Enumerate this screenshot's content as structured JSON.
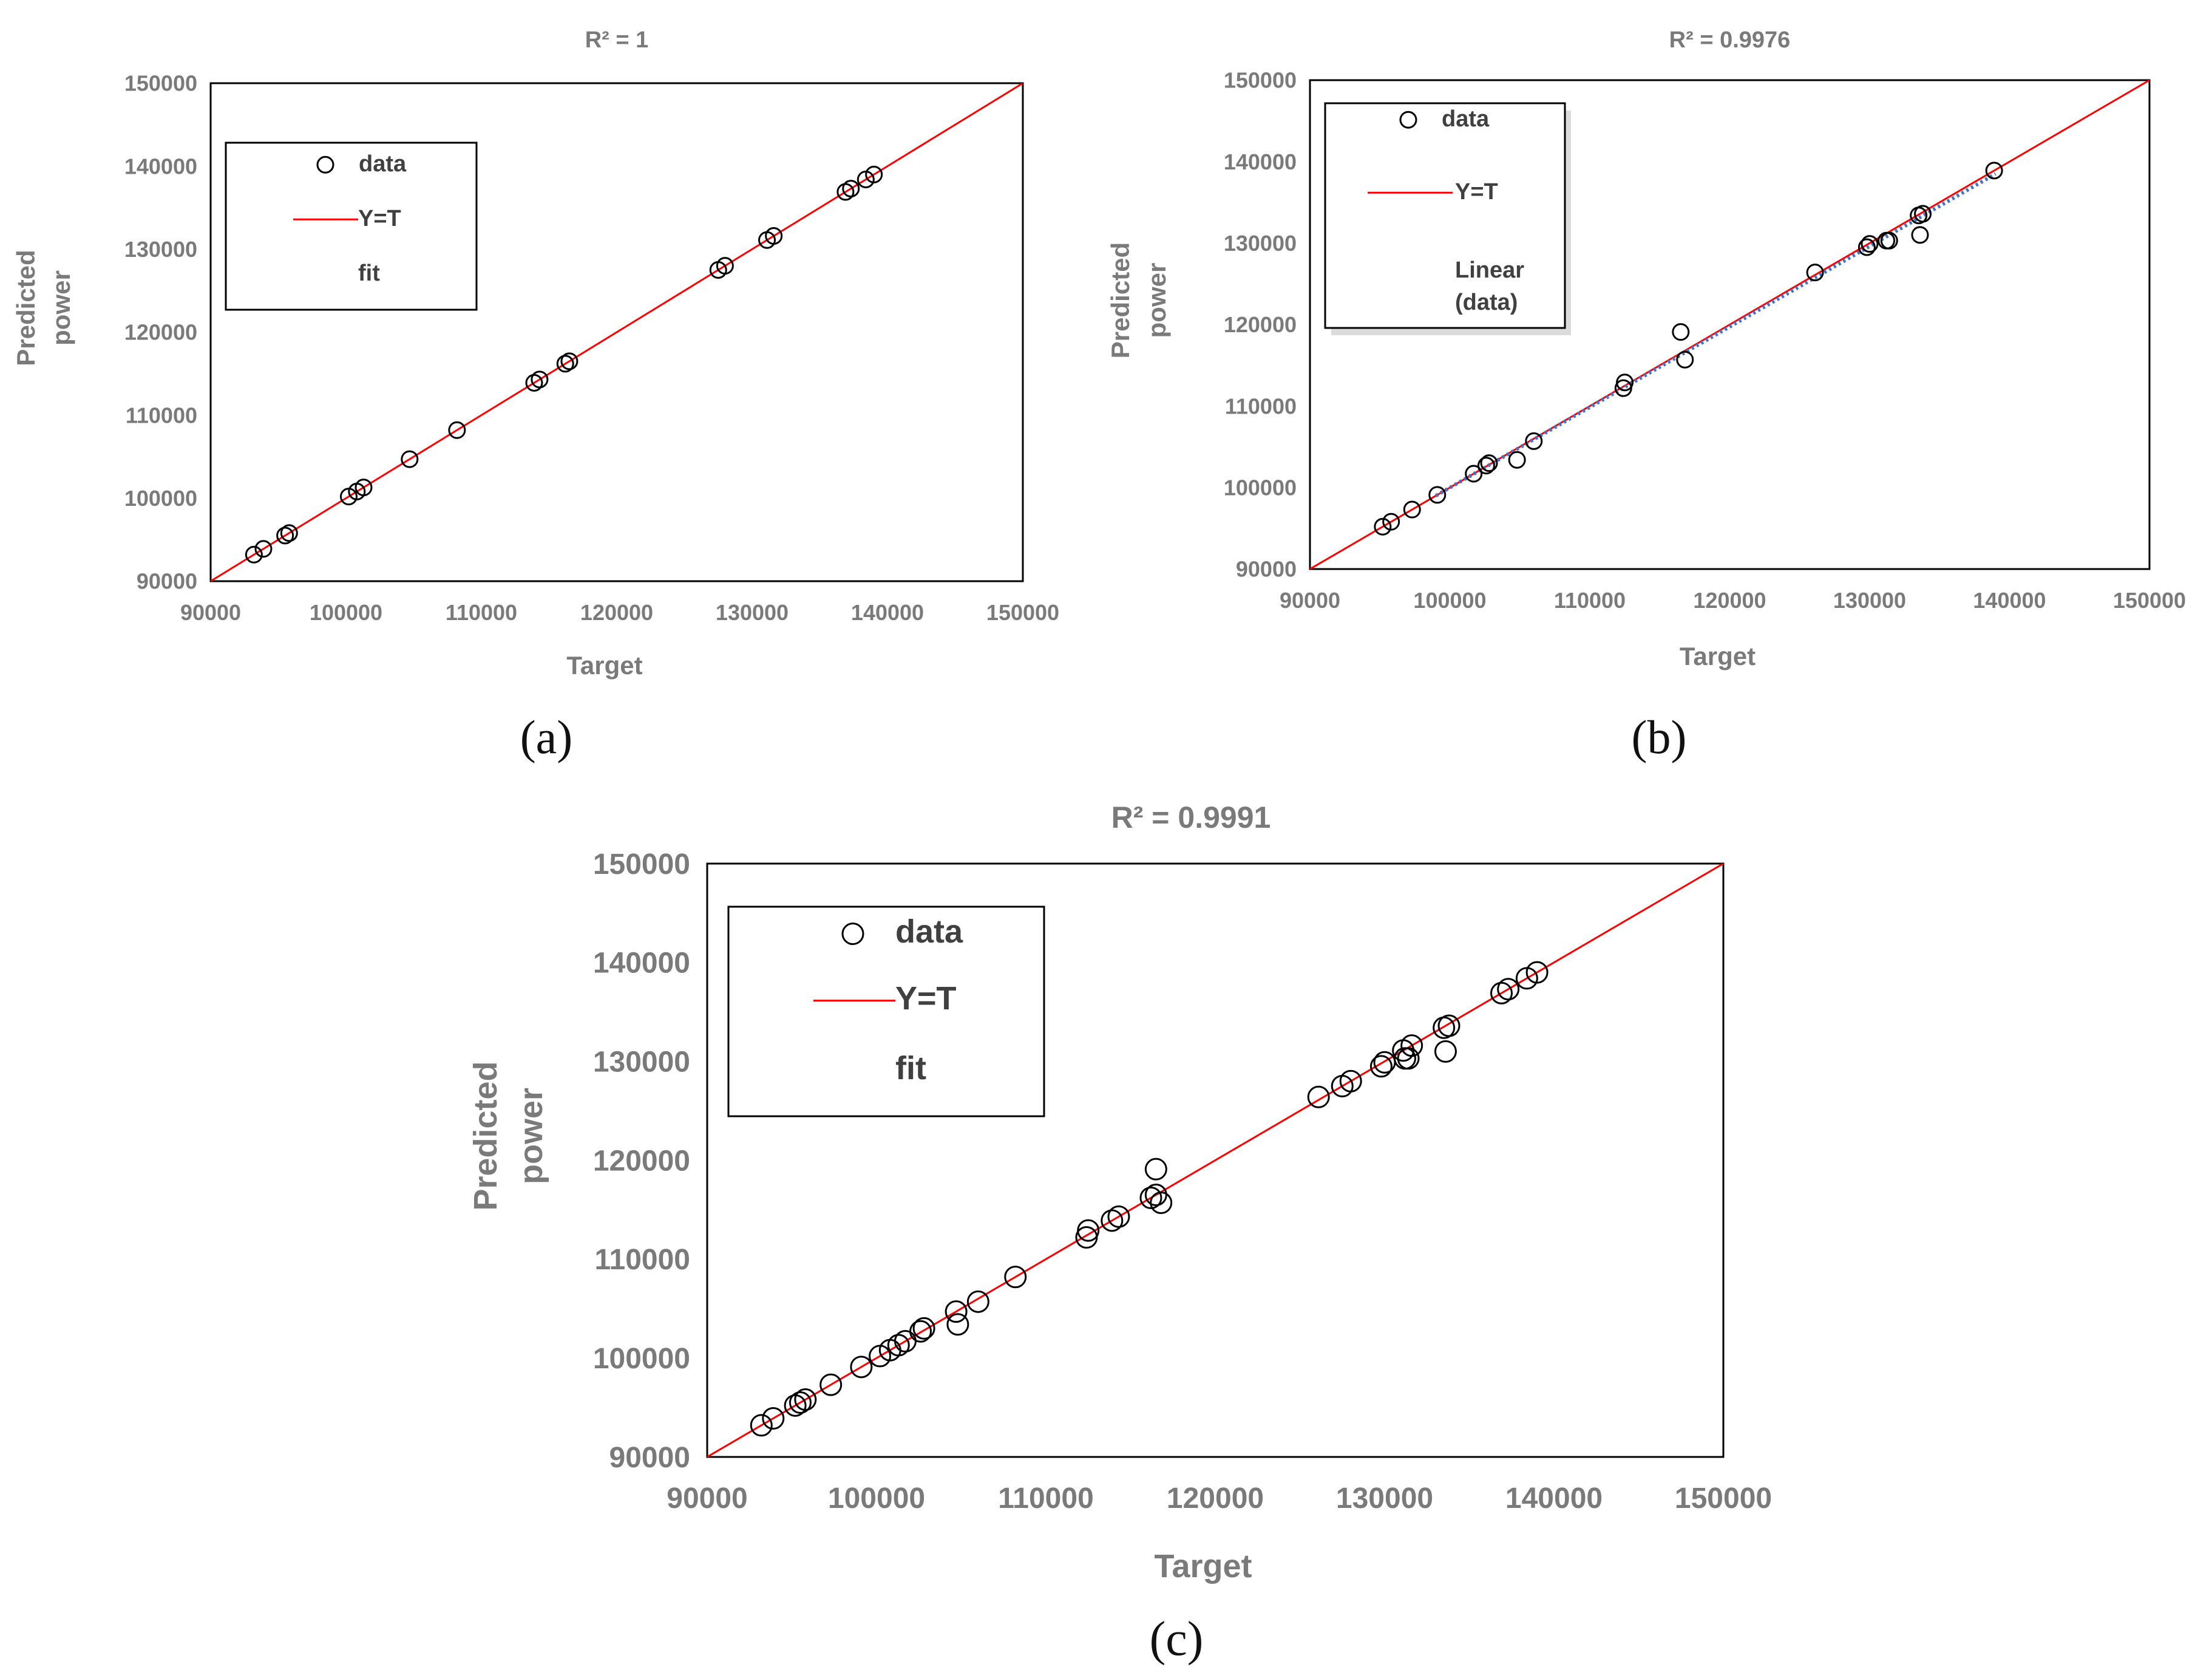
{
  "chart_data": [
    {
      "id": "a",
      "type": "scatter",
      "title": "R² = 1",
      "xlabel": "Target",
      "ylabel": [
        "Predicted",
        "power"
      ],
      "xlim": [
        90000,
        150000
      ],
      "ylim": [
        90000,
        150000
      ],
      "xticks": [
        "90000",
        "100000",
        "110000",
        "120000",
        "130000",
        "140000",
        "150000"
      ],
      "yticks": [
        "90000",
        "100000",
        "110000",
        "120000",
        "130000",
        "140000",
        "150000"
      ],
      "grid": false,
      "legend": {
        "position": "top-left",
        "entries": [
          "data",
          "Y=T",
          "fit"
        ]
      },
      "caption": "(a)",
      "series": [
        {
          "name": "data",
          "marker": "open-circle",
          "points": [
            [
              93200,
              93200
            ],
            [
              93900,
              93900
            ],
            [
              95500,
              95500
            ],
            [
              95800,
              95800
            ],
            [
              100200,
              100200
            ],
            [
              100800,
              100800
            ],
            [
              101300,
              101300
            ],
            [
              104700,
              104700
            ],
            [
              108200,
              108200
            ],
            [
              113900,
              113900
            ],
            [
              114300,
              114300
            ],
            [
              116200,
              116200
            ],
            [
              116500,
              116500
            ],
            [
              127500,
              127500
            ],
            [
              128000,
              128000
            ],
            [
              131100,
              131100
            ],
            [
              131600,
              131600
            ],
            [
              136900,
              136900
            ],
            [
              137300,
              137300
            ],
            [
              138400,
              138400
            ],
            [
              139000,
              139000
            ]
          ]
        },
        {
          "name": "Y=T",
          "type": "line",
          "color": "#ff0000",
          "points": [
            [
              90000,
              90000
            ],
            [
              150000,
              150000
            ]
          ]
        }
      ]
    },
    {
      "id": "b",
      "type": "scatter",
      "title": "R² = 0.9976",
      "xlabel": "Target",
      "ylabel": [
        "Predicted",
        "power"
      ],
      "xlim": [
        90000,
        150000
      ],
      "ylim": [
        90000,
        150000
      ],
      "xticks": [
        "90000",
        "100000",
        "110000",
        "120000",
        "130000",
        "140000",
        "150000"
      ],
      "yticks": [
        "90000",
        "100000",
        "110000",
        "120000",
        "130000",
        "140000",
        "150000"
      ],
      "grid": false,
      "legend": {
        "position": "top-left",
        "entries": [
          "data",
          "Y=T",
          "Linear",
          "(data)"
        ]
      },
      "caption": "(b)",
      "series": [
        {
          "name": "data",
          "marker": "open-circle",
          "points": [
            [
              95200,
              95200
            ],
            [
              95800,
              95800
            ],
            [
              97300,
              97300
            ],
            [
              99100,
              99100
            ],
            [
              101700,
              101700
            ],
            [
              102600,
              102700
            ],
            [
              102800,
              103000
            ],
            [
              104800,
              103400
            ],
            [
              106000,
              105700
            ],
            [
              112400,
              112200
            ],
            [
              112500,
              112900
            ],
            [
              116500,
              119100
            ],
            [
              116800,
              115700
            ],
            [
              126100,
              126400
            ],
            [
              129800,
              129500
            ],
            [
              130000,
              129900
            ],
            [
              131200,
              130300
            ],
            [
              131400,
              130300
            ],
            [
              133500,
              133400
            ],
            [
              133600,
              131000
            ],
            [
              133800,
              133600
            ],
            [
              138900,
              138900
            ]
          ]
        },
        {
          "name": "Y=T",
          "type": "line",
          "color": "#ff0000",
          "points": [
            [
              90000,
              90000
            ],
            [
              150000,
              150000
            ]
          ]
        },
        {
          "name": "Linear (data)",
          "type": "line",
          "style": "dotted",
          "color": "#4472c4",
          "points": [
            [
              99000,
              99000
            ],
            [
              139000,
              138500
            ]
          ]
        }
      ]
    },
    {
      "id": "c",
      "type": "scatter",
      "title": "R² = 0.9991",
      "xlabel": "Target",
      "ylabel": [
        "Predicted",
        "power"
      ],
      "xlim": [
        90000,
        150000
      ],
      "ylim": [
        90000,
        150000
      ],
      "xticks": [
        "90000",
        "100000",
        "110000",
        "120000",
        "130000",
        "140000",
        "150000"
      ],
      "yticks": [
        "90000",
        "100000",
        "110000",
        "120000",
        "130000",
        "140000",
        "150000"
      ],
      "grid": false,
      "legend": {
        "position": "top-left",
        "entries": [
          "data",
          "Y=T",
          "fit"
        ]
      },
      "caption": "(c)",
      "series": [
        {
          "name": "data",
          "marker": "open-circle",
          "points": [
            [
              93200,
              93200
            ],
            [
              93900,
              93900
            ],
            [
              95200,
              95200
            ],
            [
              95500,
              95500
            ],
            [
              95800,
              95800
            ],
            [
              97300,
              97300
            ],
            [
              99100,
              99100
            ],
            [
              100200,
              100200
            ],
            [
              100800,
              100800
            ],
            [
              101300,
              101300
            ],
            [
              101700,
              101700
            ],
            [
              102600,
              102700
            ],
            [
              102800,
              103000
            ],
            [
              104700,
              104700
            ],
            [
              104800,
              103400
            ],
            [
              106000,
              105700
            ],
            [
              108200,
              108200
            ],
            [
              112400,
              112200
            ],
            [
              112500,
              112900
            ],
            [
              113900,
              113900
            ],
            [
              114300,
              114300
            ],
            [
              116200,
              116200
            ],
            [
              116500,
              116500
            ],
            [
              116500,
              119100
            ],
            [
              116800,
              115700
            ],
            [
              126100,
              126400
            ],
            [
              127500,
              127500
            ],
            [
              128000,
              128000
            ],
            [
              129800,
              129500
            ],
            [
              130000,
              129900
            ],
            [
              131100,
              131100
            ],
            [
              131200,
              130300
            ],
            [
              131400,
              130300
            ],
            [
              131600,
              131600
            ],
            [
              133500,
              133400
            ],
            [
              133600,
              131000
            ],
            [
              133800,
              133600
            ],
            [
              136900,
              136900
            ],
            [
              137300,
              137300
            ],
            [
              138400,
              138400
            ],
            [
              139000,
              139000
            ]
          ]
        },
        {
          "name": "Y=T",
          "type": "line",
          "color": "#ff0000",
          "points": [
            [
              90000,
              90000
            ],
            [
              150000,
              150000
            ]
          ]
        }
      ]
    }
  ]
}
